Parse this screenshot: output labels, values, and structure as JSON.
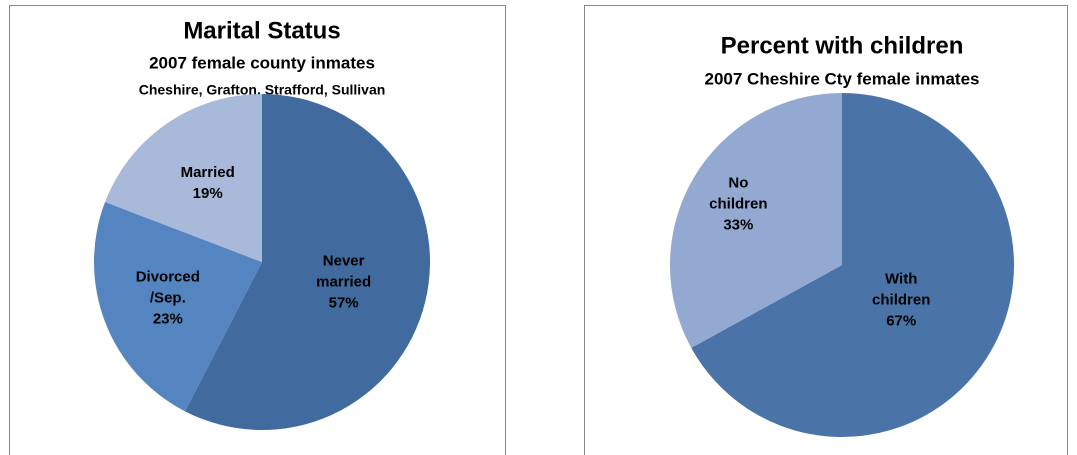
{
  "chart_data": [
    {
      "type": "pie",
      "title": "Marital Status",
      "subtitle": "2007 female county inmates",
      "note": "Cheshire, Grafton, Strafford, Sullivan",
      "categories": [
        "Never married",
        "Divorced /Sep.",
        "Married"
      ],
      "values": [
        57,
        23,
        19
      ],
      "value_labels": [
        "57%",
        "23%",
        "19%"
      ],
      "colors": [
        "#416a9e",
        "#5585c0",
        "#a9b9d9"
      ]
    },
    {
      "type": "pie",
      "title": "Percent with children",
      "subtitle": "2007 Cheshire Cty female inmates",
      "categories": [
        "With children",
        "No children"
      ],
      "values": [
        67,
        33
      ],
      "value_labels": [
        "67%",
        "33%"
      ],
      "colors": [
        "#4a74a8",
        "#94a9d1"
      ]
    }
  ]
}
